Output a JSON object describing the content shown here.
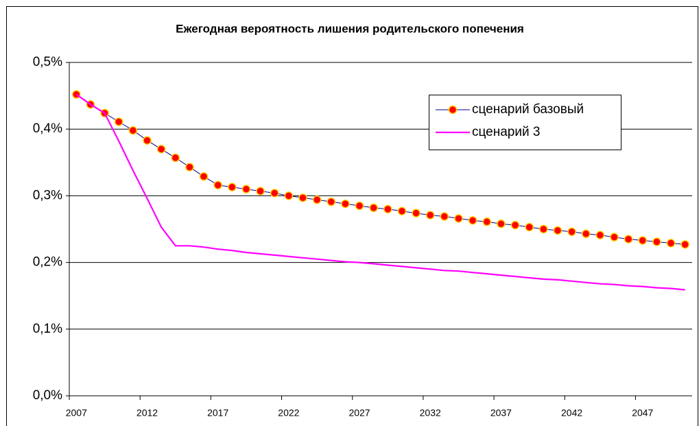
{
  "chart_data": {
    "type": "line",
    "title": "Ежегодная вероятность лишения родительского попечения",
    "categories": [
      "2007",
      null,
      null,
      null,
      null,
      "2012",
      null,
      null,
      null,
      null,
      "2017",
      null,
      null,
      null,
      null,
      "2022",
      null,
      null,
      null,
      null,
      "2027",
      null,
      null,
      null,
      null,
      "2032",
      null,
      null,
      null,
      null,
      "2037",
      null,
      null,
      null,
      null,
      "2042",
      null,
      null,
      null,
      null,
      "2047",
      null,
      null,
      null
    ],
    "series": [
      {
        "name": "сценарий базовый",
        "color": "#000080",
        "marker": true,
        "marker_fill": "#ff0000",
        "marker_stroke": "#ffcc00",
        "values": [
          0.452,
          0.437,
          0.424,
          0.411,
          0.398,
          0.383,
          0.37,
          0.357,
          0.343,
          0.329,
          0.316,
          0.313,
          0.31,
          0.307,
          0.304,
          0.3,
          0.297,
          0.294,
          0.291,
          0.288,
          0.285,
          0.282,
          0.28,
          0.277,
          0.274,
          0.271,
          0.269,
          0.266,
          0.263,
          0.261,
          0.258,
          0.256,
          0.253,
          0.25,
          0.248,
          0.246,
          0.243,
          0.241,
          0.238,
          0.235,
          0.233,
          0.231,
          0.229,
          0.227
        ]
      },
      {
        "name": "сценарий 3",
        "color": "#ff00ff",
        "marker": false,
        "values": [
          0.452,
          0.437,
          0.424,
          0.382,
          0.338,
          0.296,
          0.253,
          0.225,
          0.225,
          0.223,
          0.22,
          0.218,
          0.215,
          0.213,
          0.211,
          0.209,
          0.207,
          0.205,
          0.203,
          0.201,
          0.2,
          0.198,
          0.196,
          0.194,
          0.192,
          0.19,
          0.188,
          0.187,
          0.185,
          0.183,
          0.181,
          0.179,
          0.177,
          0.175,
          0.174,
          0.172,
          0.17,
          0.168,
          0.167,
          0.165,
          0.164,
          0.162,
          0.161,
          0.159
        ]
      }
    ],
    "ylim": [
      0,
      0.5
    ],
    "yticks": [
      {
        "value": 0,
        "label": "0,0%"
      },
      {
        "value": 0.1,
        "label": "0,1%"
      },
      {
        "value": 0.2,
        "label": "0,2%"
      },
      {
        "value": 0.3,
        "label": "0,3%"
      },
      {
        "value": 0.4,
        "label": "0,4%"
      },
      {
        "value": 0.5,
        "label": "0,5%"
      }
    ],
    "grid": true,
    "legend": "upper-right"
  }
}
